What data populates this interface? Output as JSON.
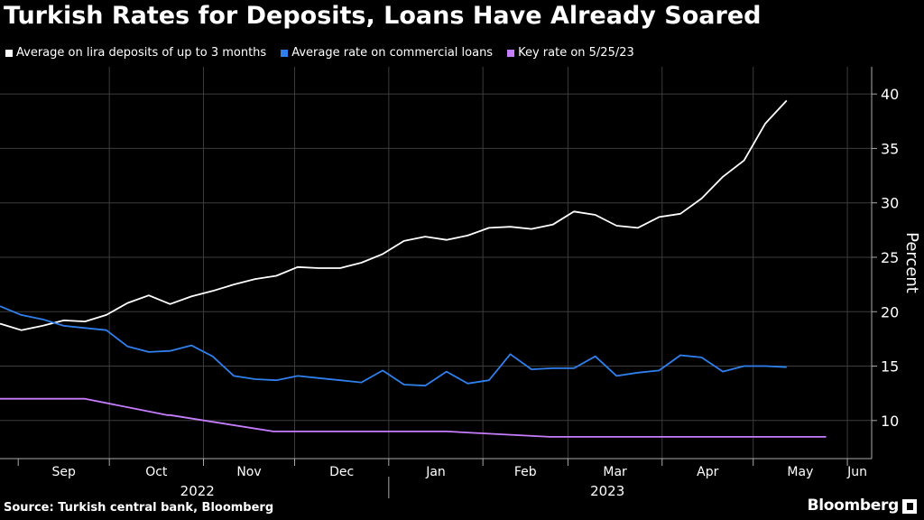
{
  "title": "Turkish Rates for Deposits, Loans Have Already Soared",
  "source": "Source: Turkish central bank, Bloomberg",
  "brand": "Bloomberg",
  "legend": [
    {
      "label": "Average on lira deposits of up to 3 months",
      "color": "#ffffff"
    },
    {
      "label": "Average rate on commercial loans",
      "color": "#2f80ed"
    },
    {
      "label": "Key rate on 5/25/23",
      "color": "#c77dff"
    }
  ],
  "chart_data": {
    "type": "line",
    "ylabel": "Percent",
    "ylim": [
      6.5,
      42.5
    ],
    "yticks": [
      10,
      15,
      20,
      25,
      30,
      35,
      40
    ],
    "xlim": [
      "2022-08-26",
      "2023-06-09"
    ],
    "month_ticks": [
      {
        "label": "Sep",
        "date": "2022-09-01"
      },
      {
        "label": "Oct",
        "date": "2022-10-01"
      },
      {
        "label": "Nov",
        "date": "2022-11-01"
      },
      {
        "label": "Dec",
        "date": "2022-12-01"
      },
      {
        "label": "Jan",
        "date": "2023-01-01"
      },
      {
        "label": "Feb",
        "date": "2023-02-01"
      },
      {
        "label": "Mar",
        "date": "2023-03-01"
      },
      {
        "label": "Apr",
        "date": "2023-04-01"
      },
      {
        "label": "May",
        "date": "2023-05-01"
      },
      {
        "label": "Jun",
        "date": "2023-06-01"
      }
    ],
    "year_labels": [
      {
        "label": "2022",
        "date": "2022-10-30"
      },
      {
        "label": "2023",
        "date": "2023-03-14"
      }
    ],
    "grid": true,
    "legend_position": "top-left",
    "series": [
      {
        "name": "Average on lira deposits of up to 3 months",
        "color": "#ffffff",
        "points": [
          [
            "2022-08-26",
            18.9
          ],
          [
            "2022-09-02",
            18.3
          ],
          [
            "2022-09-09",
            18.7
          ],
          [
            "2022-09-16",
            19.2
          ],
          [
            "2022-09-23",
            19.1
          ],
          [
            "2022-09-30",
            19.7
          ],
          [
            "2022-10-07",
            20.8
          ],
          [
            "2022-10-14",
            21.5
          ],
          [
            "2022-10-21",
            20.7
          ],
          [
            "2022-10-28",
            21.4
          ],
          [
            "2022-11-04",
            21.9
          ],
          [
            "2022-11-11",
            22.5
          ],
          [
            "2022-11-18",
            23.0
          ],
          [
            "2022-11-25",
            23.3
          ],
          [
            "2022-12-02",
            24.1
          ],
          [
            "2022-12-09",
            24.0
          ],
          [
            "2022-12-16",
            24.0
          ],
          [
            "2022-12-23",
            24.5
          ],
          [
            "2022-12-30",
            25.3
          ],
          [
            "2023-01-06",
            26.5
          ],
          [
            "2023-01-13",
            26.9
          ],
          [
            "2023-01-20",
            26.6
          ],
          [
            "2023-01-27",
            27.0
          ],
          [
            "2023-02-03",
            27.7
          ],
          [
            "2023-02-10",
            27.8
          ],
          [
            "2023-02-17",
            27.6
          ],
          [
            "2023-02-24",
            28.0
          ],
          [
            "2023-03-03",
            29.2
          ],
          [
            "2023-03-10",
            28.9
          ],
          [
            "2023-03-17",
            27.9
          ],
          [
            "2023-03-24",
            27.7
          ],
          [
            "2023-03-31",
            28.7
          ],
          [
            "2023-04-07",
            29.0
          ],
          [
            "2023-04-14",
            30.4
          ],
          [
            "2023-04-21",
            32.4
          ],
          [
            "2023-04-28",
            33.9
          ],
          [
            "2023-05-05",
            37.3
          ],
          [
            "2023-05-12",
            39.4
          ]
        ]
      },
      {
        "name": "Average rate on commercial loans",
        "color": "#2f80ed",
        "points": [
          [
            "2022-08-26",
            20.5
          ],
          [
            "2022-09-02",
            19.7
          ],
          [
            "2022-09-09",
            19.3
          ],
          [
            "2022-09-16",
            18.7
          ],
          [
            "2022-09-23",
            18.5
          ],
          [
            "2022-09-30",
            18.3
          ],
          [
            "2022-10-07",
            16.8
          ],
          [
            "2022-10-14",
            16.3
          ],
          [
            "2022-10-21",
            16.4
          ],
          [
            "2022-10-28",
            16.9
          ],
          [
            "2022-11-04",
            15.9
          ],
          [
            "2022-11-11",
            14.1
          ],
          [
            "2022-11-18",
            13.8
          ],
          [
            "2022-11-25",
            13.7
          ],
          [
            "2022-12-02",
            14.1
          ],
          [
            "2022-12-09",
            13.9
          ],
          [
            "2022-12-16",
            13.7
          ],
          [
            "2022-12-23",
            13.5
          ],
          [
            "2022-12-30",
            14.6
          ],
          [
            "2023-01-06",
            13.3
          ],
          [
            "2023-01-13",
            13.2
          ],
          [
            "2023-01-20",
            14.5
          ],
          [
            "2023-01-27",
            13.4
          ],
          [
            "2023-02-03",
            13.7
          ],
          [
            "2023-02-10",
            16.1
          ],
          [
            "2023-02-17",
            14.7
          ],
          [
            "2023-02-24",
            14.8
          ],
          [
            "2023-03-03",
            14.8
          ],
          [
            "2023-03-10",
            15.9
          ],
          [
            "2023-03-17",
            14.1
          ],
          [
            "2023-03-24",
            14.4
          ],
          [
            "2023-03-31",
            14.6
          ],
          [
            "2023-04-07",
            16.0
          ],
          [
            "2023-04-14",
            15.8
          ],
          [
            "2023-04-21",
            14.5
          ],
          [
            "2023-04-28",
            15.0
          ],
          [
            "2023-05-05",
            15.0
          ],
          [
            "2023-05-12",
            14.9
          ]
        ]
      },
      {
        "name": "Key rate on 5/25/23",
        "color": "#c77dff",
        "points": [
          [
            "2022-08-26",
            12.0
          ],
          [
            "2022-09-22",
            12.0
          ],
          [
            "2022-09-23",
            12.0
          ],
          [
            "2022-10-20",
            10.5
          ],
          [
            "2022-10-21",
            10.5
          ],
          [
            "2022-11-24",
            9.0
          ],
          [
            "2022-11-25",
            9.0
          ],
          [
            "2023-01-20",
            9.0
          ],
          [
            "2023-02-23",
            8.5
          ],
          [
            "2023-05-25",
            8.5
          ]
        ]
      }
    ]
  }
}
